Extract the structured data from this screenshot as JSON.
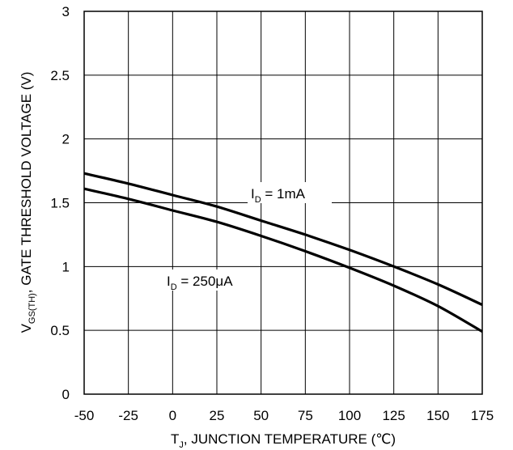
{
  "chart_data": {
    "type": "line",
    "title": "",
    "xlabel": {
      "main": "T",
      "sub": "J",
      "rest": ", JUNCTION TEMPERATURE (℃)"
    },
    "ylabel": {
      "main": "V",
      "sub": "GS(TH)",
      "rest": ", GATE THRESHOLD VOLTAGE (V)"
    },
    "xlim": [
      -50,
      175
    ],
    "ylim": [
      0,
      3
    ],
    "xticks": [
      -50,
      -25,
      0,
      25,
      50,
      75,
      100,
      125,
      150,
      175
    ],
    "yticks": [
      0,
      0.5,
      1,
      1.5,
      2,
      2.5,
      3
    ],
    "xtick_labels": [
      "-50",
      "-25",
      "0",
      "25",
      "50",
      "75",
      "100",
      "125",
      "150",
      "175"
    ],
    "ytick_labels": [
      "0",
      "0.5",
      "1",
      "1.5",
      "2",
      "2.5",
      "3"
    ],
    "grid": true,
    "series": [
      {
        "name": {
          "main": "I",
          "sub": "D",
          "rest": " = 1mA"
        },
        "x": [
          -50,
          -25,
          0,
          25,
          50,
          75,
          100,
          125,
          150,
          175
        ],
        "values": [
          1.73,
          1.65,
          1.56,
          1.47,
          1.36,
          1.25,
          1.13,
          1.0,
          0.86,
          0.7
        ]
      },
      {
        "name": {
          "main": "I",
          "sub": "D",
          "rest": " = 250μA"
        },
        "x": [
          -50,
          -25,
          0,
          25,
          50,
          75,
          100,
          125,
          150,
          175
        ],
        "values": [
          1.61,
          1.53,
          1.44,
          1.35,
          1.24,
          1.12,
          0.99,
          0.85,
          0.69,
          0.49
        ]
      }
    ]
  }
}
